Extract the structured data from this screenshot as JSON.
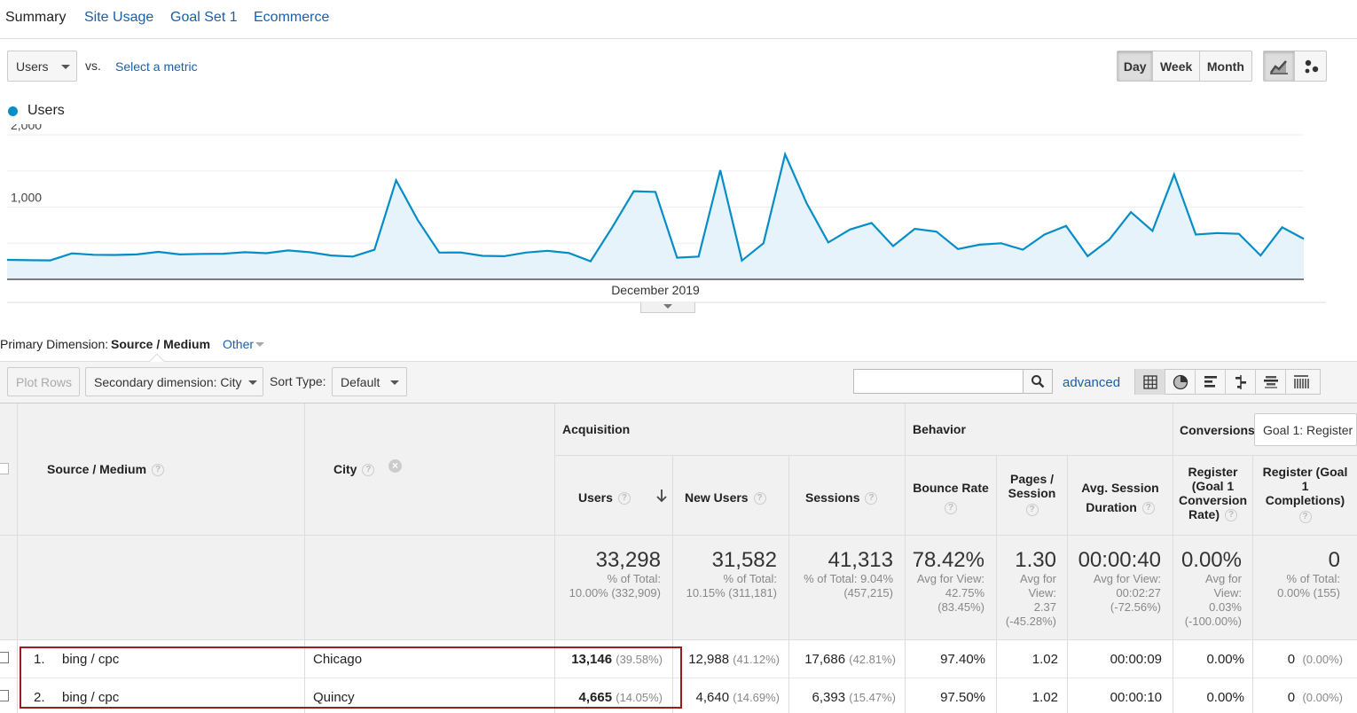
{
  "tabs": [
    "Summary",
    "Site Usage",
    "Goal Set 1",
    "Ecommerce"
  ],
  "metric": {
    "selected": "Users",
    "vs": "vs.",
    "select_link": "Select a metric"
  },
  "granularity": {
    "options": [
      "Day",
      "Week",
      "Month"
    ],
    "active": "Day"
  },
  "chart_data": {
    "type": "area",
    "series": [
      {
        "name": "Users",
        "color": "#058dc7",
        "values": [
          270,
          265,
          262,
          360,
          340,
          338,
          345,
          380,
          345,
          352,
          355,
          375,
          362,
          400,
          375,
          330,
          315,
          410,
          1370,
          820,
          370,
          372,
          325,
          320,
          370,
          395,
          365,
          250,
          720,
          1220,
          1210,
          300,
          315,
          1510,
          260,
          500,
          1730,
          1050,
          510,
          690,
          780,
          460,
          700,
          660,
          420,
          480,
          500,
          410,
          620,
          740,
          320,
          550,
          930,
          670,
          1450,
          620,
          640,
          630,
          330,
          720,
          560
        ]
      }
    ],
    "ylim": [
      0,
      2000
    ],
    "yticks": [
      "2,000",
      "1,000"
    ],
    "xlabel_center": "December 2019",
    "grid": true
  },
  "primary_dimension": {
    "label": "Primary Dimension:",
    "value": "Source / Medium",
    "other": "Other"
  },
  "toolbar": {
    "plot_rows": "Plot Rows",
    "secondary": "Secondary dimension: City",
    "sort_label": "Sort Type:",
    "sort_value": "Default",
    "advanced": "advanced",
    "search_value": ""
  },
  "table": {
    "col_source": "Source / Medium",
    "col_city": "City",
    "group_acquisition": "Acquisition",
    "group_behavior": "Behavior",
    "group_conversions": "Conversions",
    "goal_select": "Goal 1: Register",
    "col_users": "Users",
    "col_new_users": "New Users",
    "col_sessions": "Sessions",
    "col_bounce": "Bounce Rate",
    "col_pages_1": "Pages /",
    "col_pages_2": "Session",
    "col_avg_1": "Avg. Session",
    "col_avg_2": "Duration",
    "col_conv_rate_1": "Register",
    "col_conv_rate_2": "(Goal 1",
    "col_conv_rate_3": "Conversion",
    "col_conv_rate_4": "Rate)",
    "col_conv_comp_1": "Register (Goal",
    "col_conv_comp_2": "1",
    "col_conv_comp_3": "Completions)",
    "totals": {
      "users": "33,298",
      "users_sub1": "% of Total:",
      "users_sub2": "10.00% (332,909)",
      "new_users": "31,582",
      "new_users_sub1": "% of Total:",
      "new_users_sub2": "10.15% (311,181)",
      "sessions": "41,313",
      "sessions_sub1": "% of Total: 9.04%",
      "sessions_sub2": "(457,215)",
      "bounce": "78.42%",
      "bounce_sub1": "Avg for View:",
      "bounce_sub2": "42.75%",
      "bounce_sub3": "(83.45%)",
      "pages": "1.30",
      "pages_sub1": "Avg for",
      "pages_sub2": "View:",
      "pages_sub3": "2.37",
      "pages_sub4": "(-45.28%)",
      "duration": "00:00:40",
      "duration_sub1": "Avg for View:",
      "duration_sub2": "00:02:27",
      "duration_sub3": "(-72.56%)",
      "conv_rate": "0.00%",
      "conv_rate_sub1": "Avg for",
      "conv_rate_sub2": "View:",
      "conv_rate_sub3": "0.03%",
      "conv_rate_sub4": "(-100.00%)",
      "completions": "0",
      "completions_sub1": "% of Total:",
      "completions_sub2": "0.00% (155)"
    },
    "rows": [
      {
        "num": "1.",
        "source": "bing / cpc",
        "city": "Chicago",
        "users": "13,146",
        "users_pct": "(39.58%)",
        "new_users": "12,988",
        "new_users_pct": "(41.12%)",
        "sessions": "17,686",
        "sessions_pct": "(42.81%)",
        "bounce": "97.40%",
        "pages": "1.02",
        "duration": "00:00:09",
        "conv_rate": "0.00%",
        "completions": "0",
        "completions_pct": "(0.00%)"
      },
      {
        "num": "2.",
        "source": "bing / cpc",
        "city": "Quincy",
        "users": "4,665",
        "users_pct": "(14.05%)",
        "new_users": "4,640",
        "new_users_pct": "(14.69%)",
        "sessions": "6,393",
        "sessions_pct": "(15.47%)",
        "bounce": "97.50%",
        "pages": "1.02",
        "duration": "00:00:10",
        "conv_rate": "0.00%",
        "completions": "0",
        "completions_pct": "(0.00%)"
      }
    ]
  }
}
